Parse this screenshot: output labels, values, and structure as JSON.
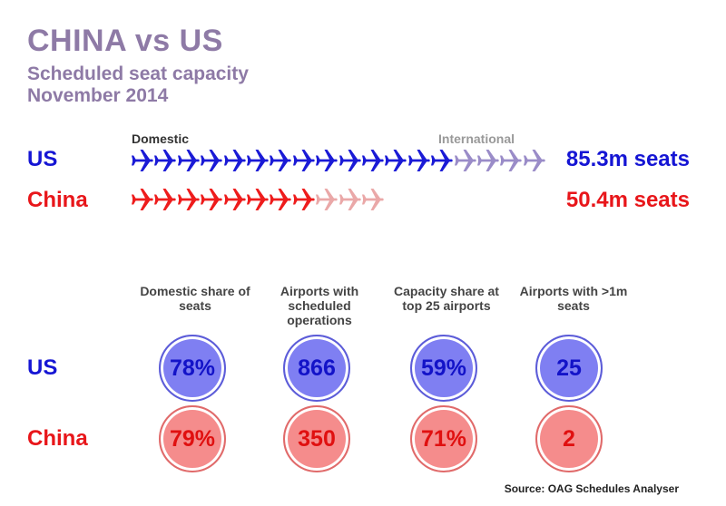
{
  "title": "CHINA vs US",
  "subtitle_line1": "Scheduled seat capacity",
  "subtitle_line2": "November 2014",
  "legend": {
    "domestic": "Domestic",
    "international": "International"
  },
  "countries": {
    "us": "US",
    "china": "China"
  },
  "colors": {
    "us_domestic": "#1a1ad6",
    "us_international": "#9a8cc8",
    "cn_domestic": "#ee1c1c",
    "cn_international": "#eaa8a8"
  },
  "chart_data": {
    "type": "pictogram",
    "title": "CHINA vs US",
    "unit": "planes (seat capacity)",
    "series": [
      {
        "name": "US",
        "domestic_icons": 14,
        "international_icons": 4,
        "total": "85.3m seats"
      },
      {
        "name": "China",
        "domestic_icons": 8,
        "international_icons": 3,
        "total": "50.4m seats"
      }
    ],
    "metrics": [
      {
        "header": "Domestic share of seats",
        "us": "78%",
        "china": "79%"
      },
      {
        "header": "Airports with scheduled operations",
        "us": "866",
        "china": "350"
      },
      {
        "header": "Capacity share at top 25 airports",
        "us": "59%",
        "china": "71%"
      },
      {
        "header": "Airports with >1m seats",
        "us": "25",
        "china": "2"
      }
    ]
  },
  "source": "Source: OAG Schedules Analyser"
}
